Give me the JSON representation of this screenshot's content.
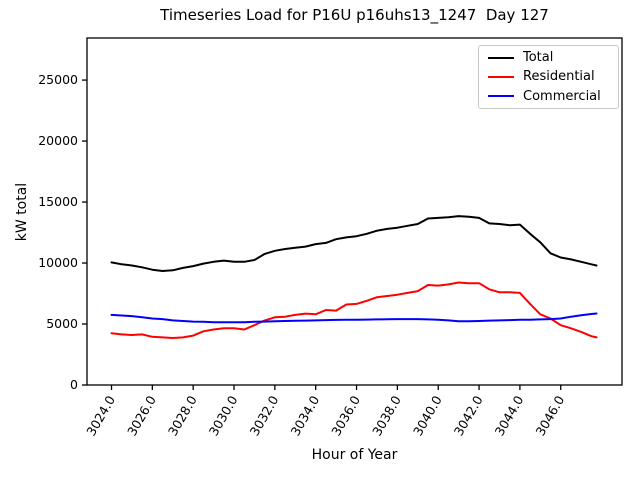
{
  "figure": {
    "title": "Timeseries Load for P16U p16uhs13_1247  Day 127",
    "xlabel": "Hour of Year",
    "ylabel": "kW total",
    "background_color": "#ffffff",
    "axes_edge_color": "#000000"
  },
  "legend": {
    "position": "upper right",
    "items": [
      {
        "label": "Total",
        "color": "#000000"
      },
      {
        "label": "Residential",
        "color": "#ff0000"
      },
      {
        "label": "Commercial",
        "color": "#0000ff"
      }
    ]
  },
  "chart_data": {
    "type": "line",
    "title": "Timeseries Load for P16U p16uhs13_1247  Day 127",
    "xlabel": "Hour of Year",
    "ylabel": "kW total",
    "grid": false,
    "legend_position": "upper right",
    "xlim": [
      3022.8,
      3049.0
    ],
    "ylim": [
      0,
      28450
    ],
    "x_ticks": [
      3024,
      3026,
      3028,
      3030,
      3032,
      3034,
      3036,
      3038,
      3040,
      3042,
      3044,
      3046
    ],
    "x_tick_labels": [
      "3024.0",
      "3026.0",
      "3028.0",
      "3030.0",
      "3032.0",
      "3034.0",
      "3036.0",
      "3038.0",
      "3040.0",
      "3042.0",
      "3044.0",
      "3046.0"
    ],
    "x_tick_rotation_deg": 60,
    "y_ticks": [
      0,
      5000,
      10000,
      15000,
      20000,
      25000
    ],
    "y_tick_labels": [
      "0",
      "5000",
      "10000",
      "15000",
      "20000",
      "25000"
    ],
    "x": [
      3024.0,
      3024.5,
      3025.0,
      3025.5,
      3026.0,
      3026.5,
      3027.0,
      3027.5,
      3028.0,
      3028.5,
      3029.0,
      3029.5,
      3030.0,
      3030.5,
      3031.0,
      3031.5,
      3032.0,
      3032.5,
      3033.0,
      3033.5,
      3034.0,
      3034.5,
      3035.0,
      3035.5,
      3036.0,
      3036.5,
      3037.0,
      3037.5,
      3038.0,
      3038.5,
      3039.0,
      3039.5,
      3040.0,
      3040.5,
      3041.0,
      3041.5,
      3042.0,
      3042.5,
      3043.0,
      3043.5,
      3044.0,
      3044.5,
      3045.0,
      3045.5,
      3046.0,
      3046.5,
      3047.0,
      3047.5,
      3047.75
    ],
    "series": [
      {
        "name": "Total",
        "color": "#000000",
        "values": [
          10050,
          9900,
          9800,
          9650,
          9450,
          9350,
          9400,
          9600,
          9750,
          9950,
          10100,
          10200,
          10100,
          10100,
          10250,
          10750,
          11000,
          11150,
          11250,
          11350,
          11550,
          11650,
          11950,
          12100,
          12200,
          12400,
          12650,
          12800,
          12900,
          13050,
          13200,
          13650,
          13700,
          13750,
          13850,
          13800,
          13700,
          13250,
          13200,
          13100,
          13150,
          12400,
          11700,
          10800,
          10450,
          10300,
          10100,
          9900,
          9800
        ]
      },
      {
        "name": "Residential",
        "color": "#ff0000",
        "values": [
          4250,
          4150,
          4100,
          4150,
          3950,
          3900,
          3850,
          3900,
          4050,
          4400,
          4550,
          4650,
          4650,
          4550,
          4900,
          5300,
          5550,
          5600,
          5750,
          5850,
          5800,
          6150,
          6100,
          6600,
          6650,
          6900,
          7200,
          7300,
          7400,
          7550,
          7700,
          8200,
          8150,
          8250,
          8400,
          8350,
          8350,
          7850,
          7600,
          7600,
          7550,
          6650,
          5800,
          5450,
          4900,
          4650,
          4350,
          4000,
          3900
        ]
      },
      {
        "name": "Commercial",
        "color": "#0000ff",
        "values": [
          5750,
          5700,
          5650,
          5550,
          5450,
          5400,
          5300,
          5250,
          5200,
          5180,
          5150,
          5150,
          5150,
          5150,
          5180,
          5200,
          5220,
          5250,
          5270,
          5280,
          5300,
          5320,
          5340,
          5350,
          5350,
          5360,
          5380,
          5390,
          5400,
          5400,
          5400,
          5380,
          5350,
          5300,
          5230,
          5230,
          5250,
          5280,
          5300,
          5320,
          5350,
          5350,
          5380,
          5400,
          5450,
          5600,
          5720,
          5820,
          5860
        ]
      }
    ]
  }
}
